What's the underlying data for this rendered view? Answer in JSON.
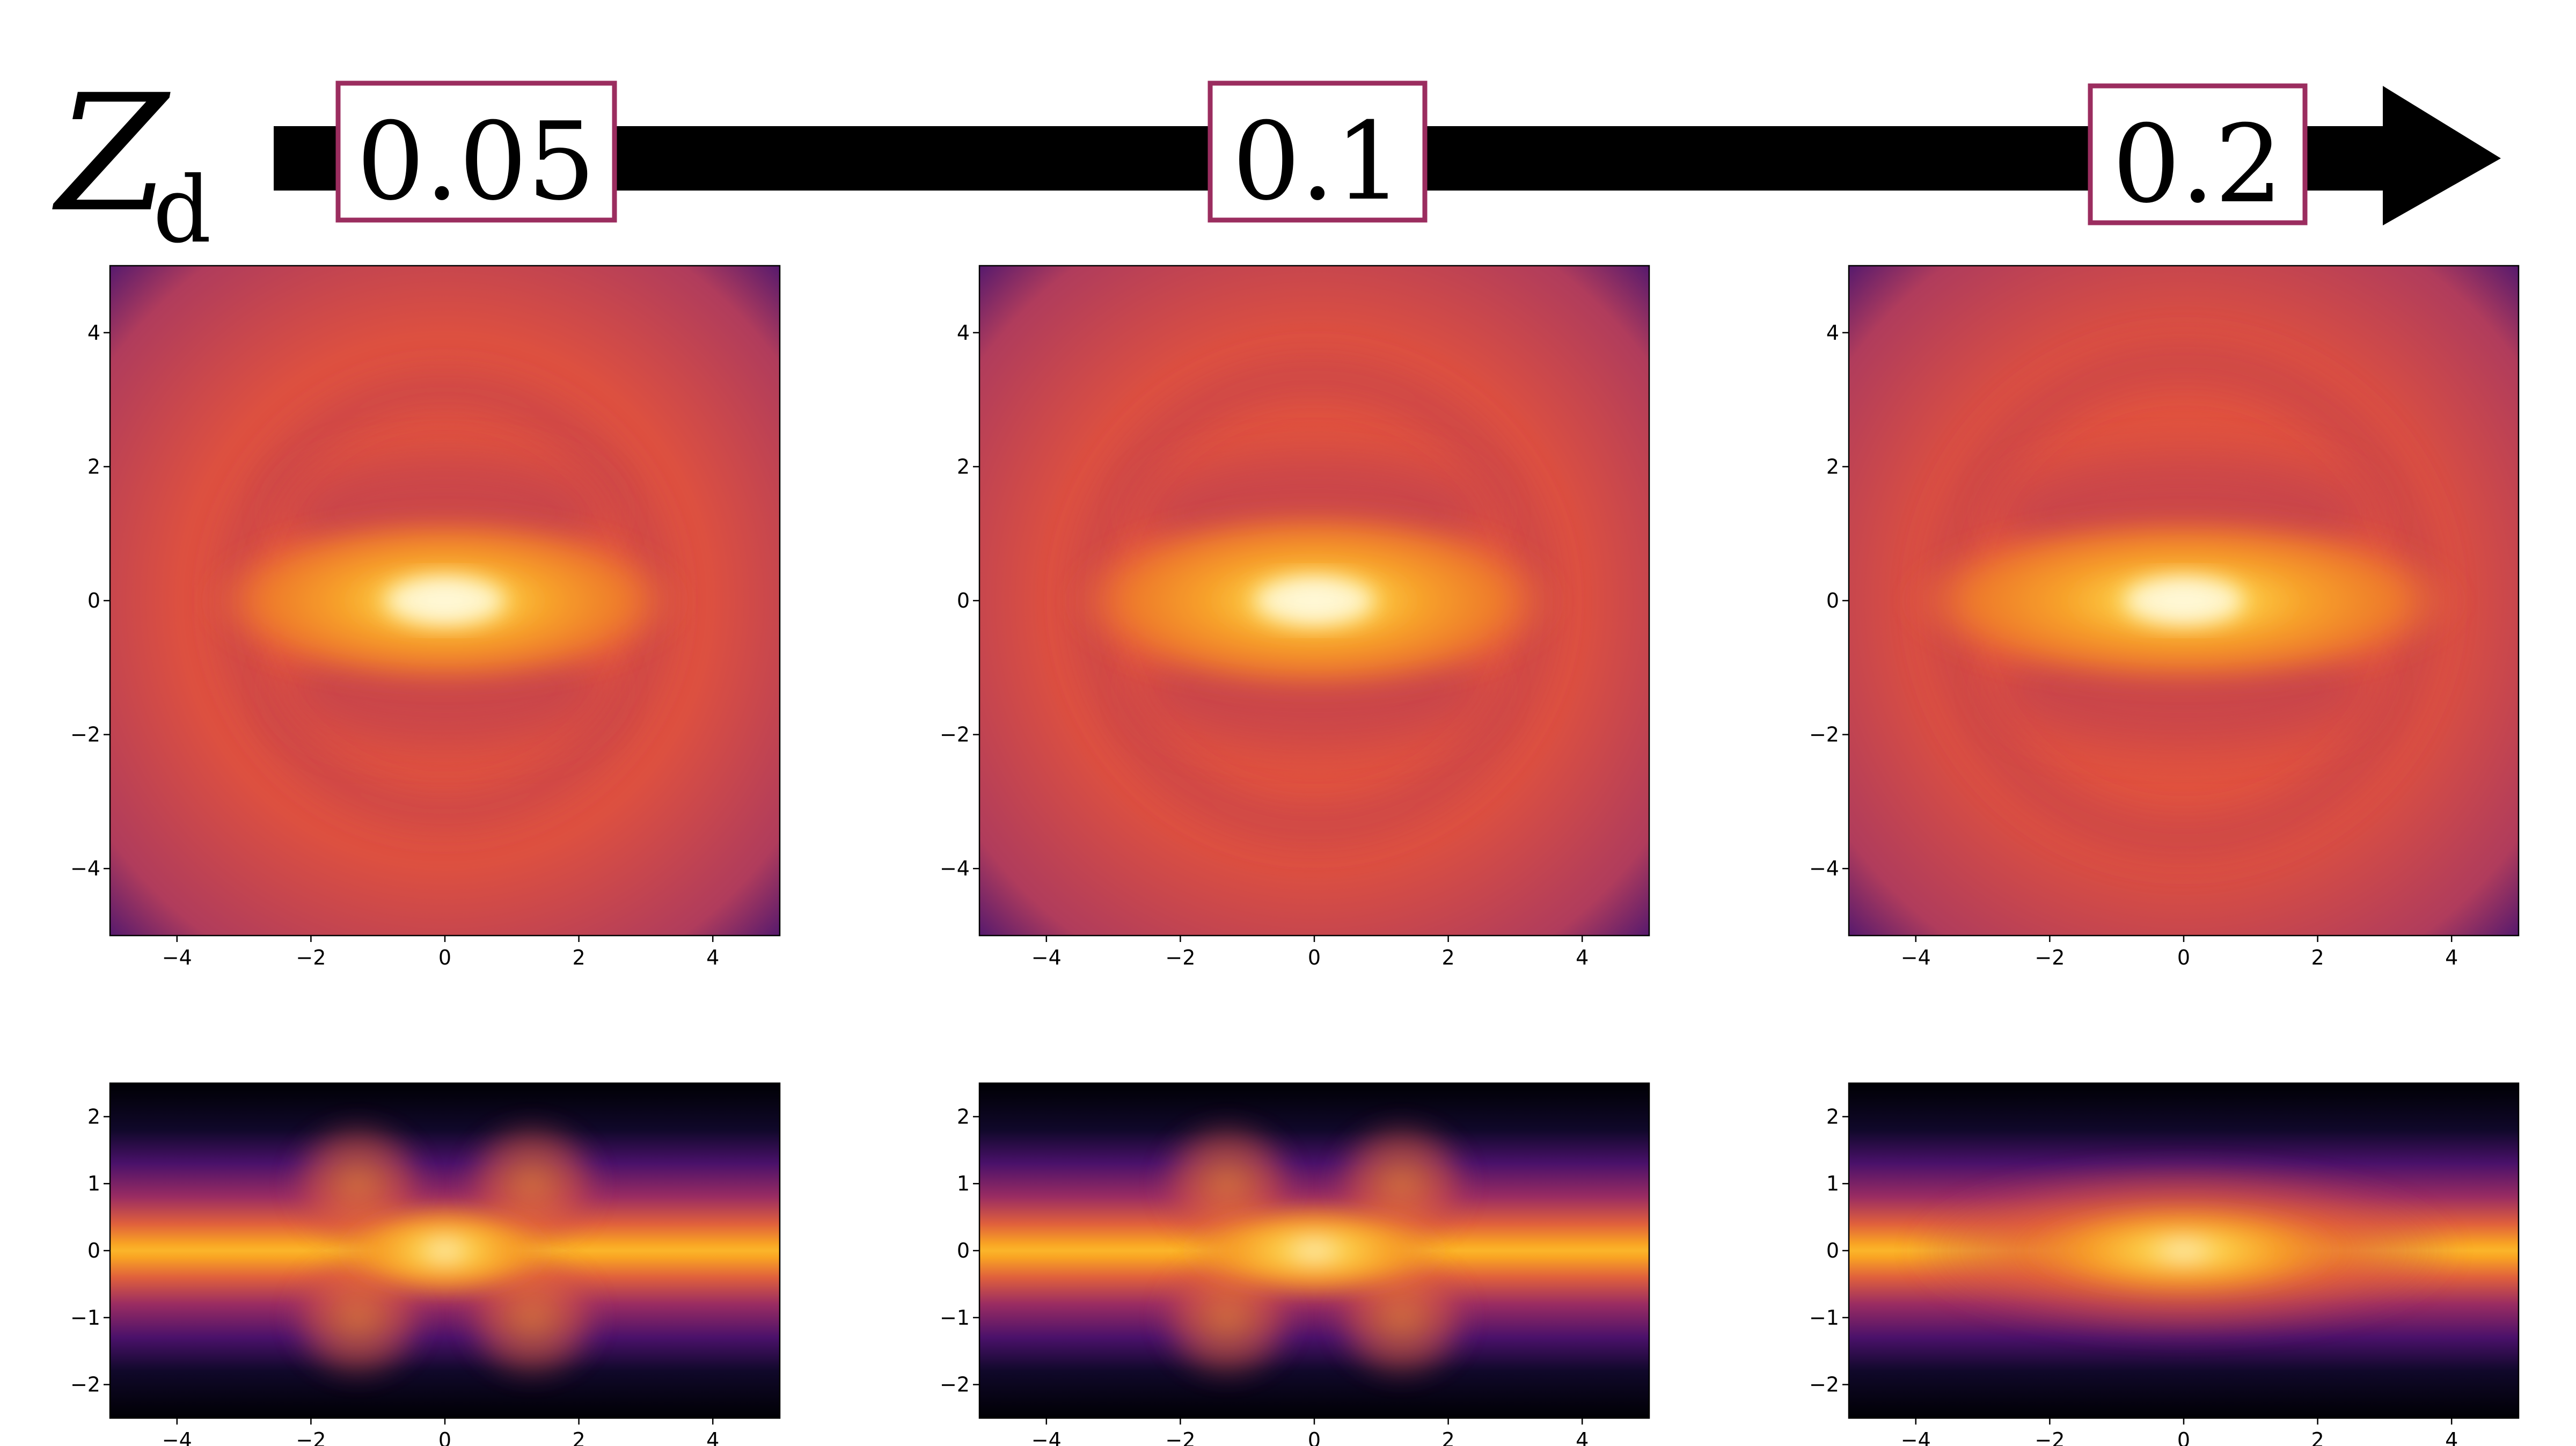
{
  "header": {
    "variable_symbol": "Z",
    "variable_subscript": "d",
    "values": [
      "0.05",
      "0.1",
      "0.2"
    ],
    "box_color": "#9b2d5f"
  },
  "chart_data": [
    {
      "type": "heatmap",
      "panel": "face-on",
      "column": 0,
      "xlim": [
        -5,
        5
      ],
      "ylim": [
        -5,
        5
      ],
      "xticks": [
        -4,
        -2,
        0,
        2,
        4
      ],
      "yticks": [
        -4,
        -2,
        0,
        2,
        4
      ],
      "colormap": "inferno"
    },
    {
      "type": "heatmap",
      "panel": "face-on",
      "column": 1,
      "xlim": [
        -5,
        5
      ],
      "ylim": [
        -5,
        5
      ],
      "xticks": [
        -4,
        -2,
        0,
        2,
        4
      ],
      "yticks": [
        -4,
        -2,
        0,
        2,
        4
      ],
      "colormap": "inferno"
    },
    {
      "type": "heatmap",
      "panel": "face-on",
      "column": 2,
      "xlim": [
        -5,
        5
      ],
      "ylim": [
        -5,
        5
      ],
      "xticks": [
        -4,
        -2,
        0,
        2,
        4
      ],
      "yticks": [
        -4,
        -2,
        0,
        2,
        4
      ],
      "colormap": "inferno"
    },
    {
      "type": "heatmap",
      "panel": "edge-on",
      "column": 0,
      "xlim": [
        -5,
        5
      ],
      "ylim": [
        -2.5,
        2.5
      ],
      "xticks": [
        -4,
        -2,
        0,
        2,
        4
      ],
      "yticks": [
        -2,
        -1,
        0,
        1,
        2
      ],
      "colormap": "inferno"
    },
    {
      "type": "heatmap",
      "panel": "edge-on",
      "column": 1,
      "xlim": [
        -5,
        5
      ],
      "ylim": [
        -2.5,
        2.5
      ],
      "xticks": [
        -4,
        -2,
        0,
        2,
        4
      ],
      "yticks": [
        -2,
        -1,
        0,
        1,
        2
      ],
      "colormap": "inferno"
    },
    {
      "type": "heatmap",
      "panel": "edge-on",
      "column": 2,
      "xlim": [
        -5,
        5
      ],
      "ylim": [
        -2.5,
        2.5
      ],
      "xticks": [
        -4,
        -2,
        0,
        2,
        4
      ],
      "yticks": [
        -2,
        -1,
        0,
        1,
        2
      ],
      "colormap": "inferno"
    }
  ]
}
